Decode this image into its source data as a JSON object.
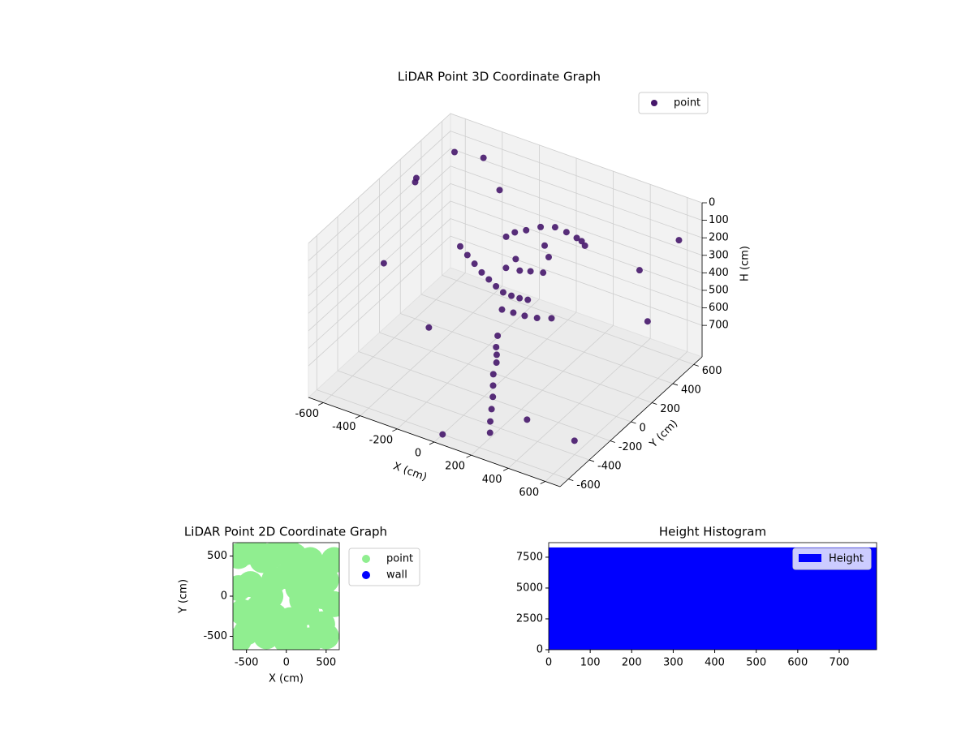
{
  "chart_data": [
    {
      "type": "scatter3d",
      "title": "LiDAR Point 3D Coordinate Graph",
      "xlabel": "X (cm)",
      "ylabel": "Y (cm)",
      "zlabel": "H (cm)",
      "xlim": [
        -680,
        680
      ],
      "ylim": [
        -680,
        680
      ],
      "zlim": [
        880,
        0
      ],
      "xticks": [
        -600,
        -400,
        -200,
        0,
        200,
        400,
        600
      ],
      "yticks": [
        -600,
        -400,
        -200,
        0,
        200,
        400,
        600
      ],
      "zticks": [
        0,
        100,
        200,
        300,
        400,
        500,
        600,
        700
      ],
      "grid": true,
      "legend": "upper right",
      "series": [
        {
          "name": "point",
          "color": "#46176b",
          "x": [
            -300,
            -250,
            -200,
            -150,
            -100,
            -50,
            0,
            50,
            100,
            150,
            0,
            50,
            100,
            150,
            200,
            250,
            -50,
            -80,
            100,
            150,
            50,
            80,
            120,
            0,
            -30,
            100,
            150,
            200,
            250,
            50,
            150,
            150,
            160,
            170,
            180,
            190,
            200,
            120,
            100,
            140,
            -600,
            -650,
            -500,
            -400,
            500,
            600,
            -300,
            400,
            600,
            -600,
            300,
            -200,
            600,
            0
          ],
          "y": [
            100,
            80,
            60,
            40,
            20,
            0,
            -20,
            -30,
            -40,
            -50,
            200,
            250,
            300,
            320,
            330,
            320,
            180,
            150,
            200,
            150,
            50,
            100,
            150,
            100,
            60,
            -100,
            -80,
            -50,
            0,
            -120,
            -350,
            -380,
            -400,
            -420,
            -450,
            -480,
            -500,
            -300,
            -250,
            -330,
            200,
            300,
            400,
            500,
            400,
            300,
            -200,
            -500,
            -400,
            -100,
            200,
            300,
            600,
            -600
          ],
          "z": [
            300,
            320,
            340,
            360,
            370,
            380,
            385,
            380,
            370,
            355,
            150,
            140,
            150,
            170,
            190,
            210,
            170,
            190,
            200,
            220,
            280,
            300,
            320,
            260,
            300,
            420,
            430,
            440,
            450,
            410,
            550,
            600,
            650,
            700,
            750,
            800,
            850,
            500,
            470,
            520,
            100,
            150,
            0,
            50,
            300,
            500,
            600,
            700,
            800,
            400,
            100,
            50,
            200,
            880
          ]
        }
      ]
    },
    {
      "type": "scatter",
      "title": "LiDAR Point 2D Coordinate Graph",
      "xlabel": "X (cm)",
      "ylabel": "Y (cm)",
      "xlim": [
        -670,
        665
      ],
      "ylim": [
        -667,
        667
      ],
      "xticks": [
        -500,
        0,
        500
      ],
      "yticks": [
        -500,
        0,
        500
      ],
      "legend": "outside right",
      "series": [
        {
          "name": "point",
          "color": "#90ee90",
          "x": [
            -600,
            -500,
            -400,
            -300,
            -200,
            -100,
            0,
            100,
            200,
            300,
            400,
            500,
            600,
            -600,
            -450,
            -300,
            -150,
            0,
            150,
            300,
            450,
            600,
            -550,
            -350,
            -150,
            50,
            250,
            450,
            -500,
            -250,
            0,
            250,
            500,
            -600,
            -400,
            -100,
            100,
            300,
            -200,
            200
          ],
          "y": [
            500,
            550,
            600,
            450,
            500,
            550,
            600,
            500,
            400,
            450,
            300,
            200,
            450,
            100,
            150,
            50,
            200,
            250,
            100,
            150,
            0,
            -100,
            -200,
            -150,
            -250,
            -300,
            -200,
            -350,
            -450,
            -500,
            -550,
            -600,
            -500,
            -550,
            -350,
            -450,
            -400,
            -550,
            0,
            -50
          ]
        },
        {
          "name": "wall",
          "color": "#0000ff",
          "x": [],
          "y": []
        }
      ]
    },
    {
      "type": "histogram",
      "title": "Height Histogram",
      "xlim": [
        0,
        790
      ],
      "ylim": [
        0,
        8680
      ],
      "xticks": [
        0,
        100,
        200,
        300,
        400,
        500,
        600,
        700
      ],
      "yticks": [
        0,
        2500,
        5000,
        7500
      ],
      "legend": "upper right",
      "series": [
        {
          "name": "Height",
          "color": "#0000ff",
          "bins": [
            0,
            790
          ],
          "values": [
            8290
          ]
        }
      ]
    }
  ]
}
